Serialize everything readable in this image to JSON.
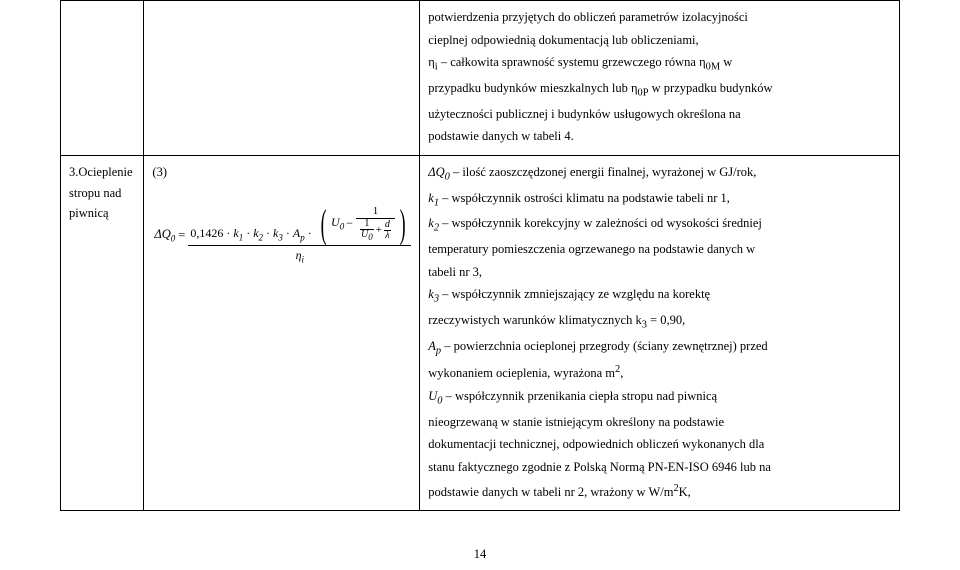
{
  "row1": {
    "c3": {
      "lines": [
        "potwierdzenia przyjętych do obliczeń parametrów izolacyjności",
        "cieplnej odpowiednią dokumentacją lub obliczeniami,",
        "η<sub>i</sub> – całkowita sprawność systemu grzewczego równa η<sub>0M</sub> w",
        "przypadku budynków mieszkalnych lub η<sub>0P</sub> w przypadku budynków",
        "użyteczności publicznej i budynków usługowych określona na",
        "podstawie danych w tabeli 4."
      ]
    }
  },
  "row2": {
    "c1": "3.Ocieplenie stropu nad piwnicą",
    "formula_label_three": "(3)",
    "c3_lines": [
      "<span class='ital'>ΔQ<sub>0</sub></span> – ilość zaoszczędzonej energii finalnej, wyrażonej w GJ/rok,",
      "<span class='ital'>k<sub>1</sub></span> – współczynnik ostrości klimatu na podstawie tabeli nr 1,",
      "<span class='ital'>k<sub>2</sub></span> – współczynnik korekcyjny w zależności od wysokości średniej",
      "temperatury pomieszczenia ogrzewanego na podstawie danych w",
      "tabeli nr  3,",
      "<span class='ital'>k<sub>3</sub></span> – współczynnik zmniejszający ze względu na korektę",
      "rzeczywistych warunków klimatycznych k<sub>3</sub> = 0,90,",
      "<span class='ital'>A<sub>p</sub></span> – powierzchnia ocieplonej przegrody (ściany zewnętrznej) przed",
      "wykonaniem ocieplenia, wyrażona m<sup>2</sup>,",
      "<span class='ital'>U<sub>0</sub></span> – współczynnik przenikania ciepła stropu nad piwnicą",
      "nieogrzewaną w stanie istniejącym określony na podstawie",
      "dokumentacji technicznej, odpowiednich obliczeń wykonanych dla",
      "stanu faktycznego zgodnie z Polską Normą PN-EN-ISO 6946 lub na",
      "podstawie danych w tabeli nr  2, wrażony w W/m<sup>2</sup>K,"
    ]
  },
  "formula": {
    "lhs": "ΔQ",
    "lhs_sub": "0",
    "coeff": "0,1426",
    "k1": "k",
    "k1s": "1",
    "k2": "k",
    "k2s": "2",
    "k3": "k",
    "k3s": "3",
    "Ap": "A",
    "Aps": "p",
    "U0": "U",
    "U0s": "0",
    "one": "1",
    "d": "d",
    "lambda": "λ",
    "plus": "+",
    "minus": "−",
    "dot": "·",
    "eq": "=",
    "eta": "η",
    "etas": "i"
  },
  "page_number": "14"
}
